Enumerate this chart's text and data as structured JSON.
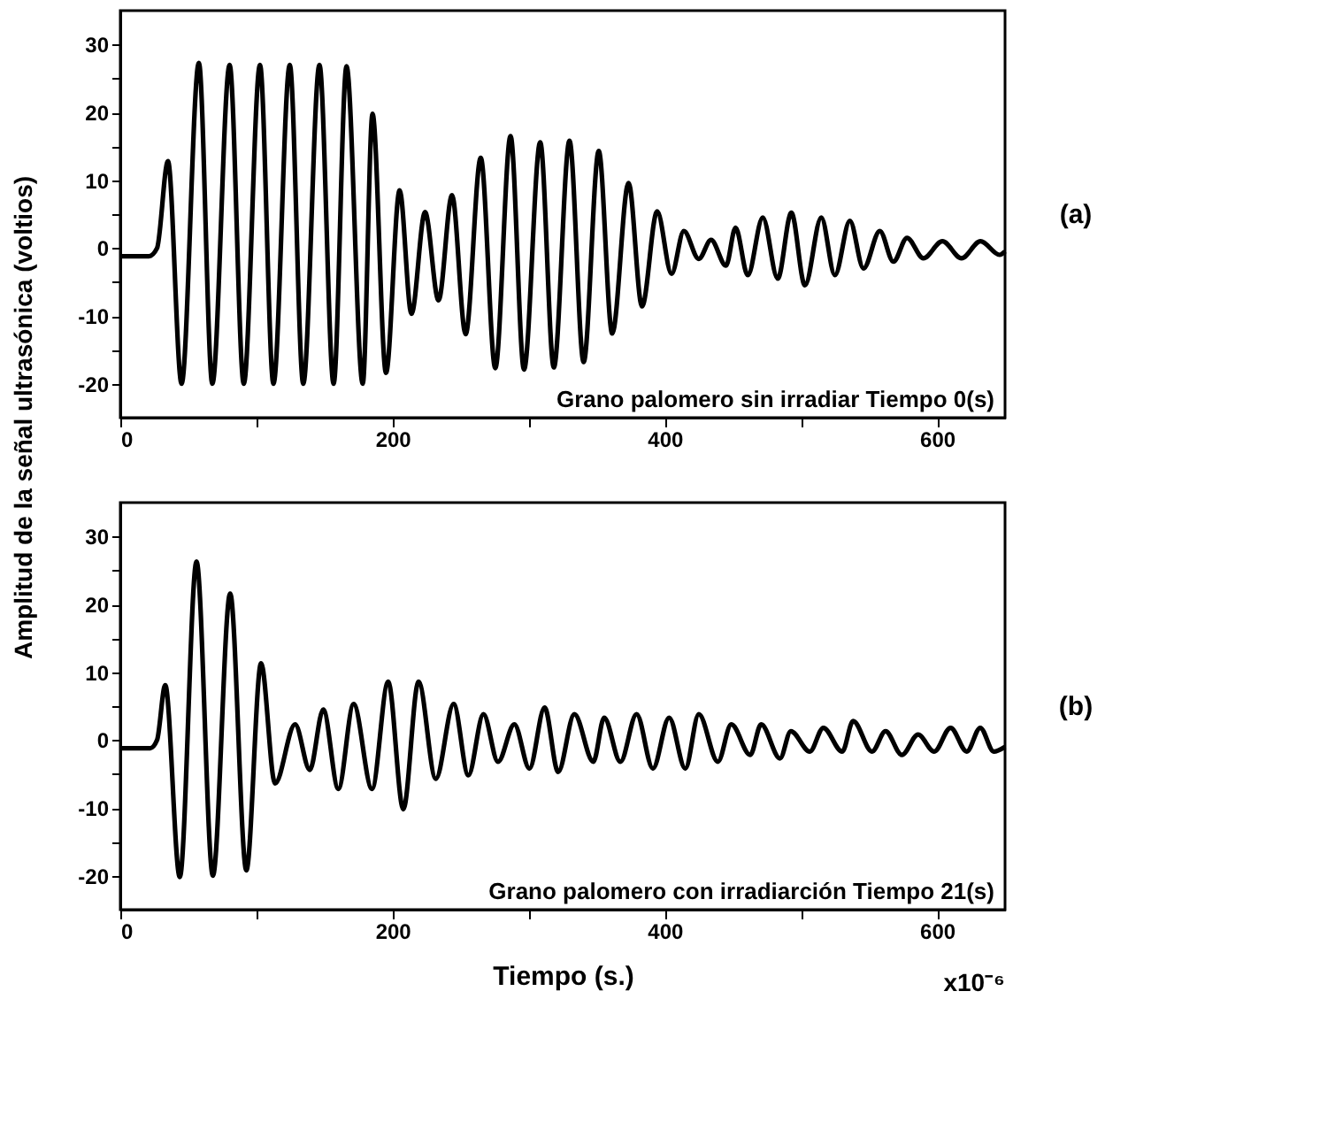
{
  "chart_data": [
    {
      "type": "line",
      "ylabel": "Amplitud de la señal ultrasónica (voltios)",
      "xlim": [
        0,
        650
      ],
      "ylim": [
        -25,
        35
      ],
      "xticks": [
        0,
        {
          "value": 100,
          "label": null
        },
        200,
        {
          "value": 300,
          "label": null
        },
        400,
        {
          "value": 500,
          "label": null
        },
        600
      ],
      "yticks": [
        -20,
        {
          "value": -15,
          "label": null
        },
        -10,
        {
          "value": -5,
          "label": null
        },
        0,
        {
          "value": 5,
          "label": null
        },
        10,
        {
          "value": 15,
          "label": null
        },
        20,
        {
          "value": 25,
          "label": null
        },
        30
      ],
      "annotations": [
        "Grano palomero sin irradiar Tiempo 0(s)",
        "(a)"
      ],
      "series": [
        {
          "color": "#000000",
          "x": [
            0,
            21,
            27,
            35,
            45,
            57.7,
            67.6,
            80.3,
            90.7,
            102.6,
            112.5,
            124.5,
            134.4,
            146.3,
            156.7,
            166.2,
            178.1,
            185.3,
            195.2,
            205.2,
            213.9,
            223.9,
            233.8,
            243.7,
            253.7,
            264.8,
            275.5,
            286.7,
            296.6,
            308.5,
            318.5,
            330,
            340.4,
            351.5,
            361.4,
            373.4,
            383.3,
            394.4,
            405,
            414,
            425,
            434,
            445,
            452,
            461,
            472,
            483,
            493,
            503,
            515,
            525,
            536,
            546,
            558,
            568,
            578,
            590,
            604,
            618,
            632,
            646,
            650
          ],
          "values": [
            -1.2,
            -1.2,
            0,
            12.8,
            -20,
            27.3,
            -20,
            27,
            -20,
            27,
            -20,
            27,
            -20,
            27,
            -20,
            26.8,
            -20,
            19.8,
            -18.4,
            8.5,
            -9.7,
            5.3,
            -7.7,
            7.8,
            -12.7,
            13.3,
            -17.7,
            16.5,
            -17.9,
            15.6,
            -17.6,
            15.8,
            -16.8,
            14.3,
            -12.6,
            9.6,
            -8.6,
            5.4,
            -3.8,
            2.5,
            -1.6,
            1.2,
            -2.6,
            3,
            -4,
            4.5,
            -4.5,
            5.2,
            -5.5,
            4.5,
            -4,
            4,
            -3,
            2.5,
            -2,
            1.5,
            -1.5,
            1,
            -1.5,
            1,
            -1,
            -0.5
          ]
        }
      ]
    },
    {
      "type": "line",
      "xlabel": "Tiempo (s.)",
      "xlim": [
        0,
        650
      ],
      "ylim": [
        -25,
        35
      ],
      "xticks": [
        0,
        {
          "value": 100,
          "label": null
        },
        200,
        {
          "value": 300,
          "label": null
        },
        400,
        {
          "value": 500,
          "label": null
        },
        600
      ],
      "yticks": [
        -20,
        {
          "value": -15,
          "label": null
        },
        -10,
        {
          "value": -5,
          "label": null
        },
        0,
        {
          "value": 5,
          "label": null
        },
        10,
        {
          "value": 15,
          "label": null
        },
        20,
        {
          "value": 25,
          "label": null
        },
        30
      ],
      "annotations": [
        "Grano palomero con irradiarción  Tiempo 21(s)",
        "(b)",
        "x10⁻⁶"
      ],
      "series": [
        {
          "color": "#000000",
          "x": [
            0,
            22,
            27,
            33,
            43.7,
            56,
            68,
            80.7,
            92.6,
            103.4,
            113.7,
            128.4,
            139.2,
            149.1,
            160.2,
            171.4,
            184.9,
            196.8,
            207.9,
            219.1,
            231.8,
            244.9,
            255.7,
            266.8,
            277.5,
            289.5,
            300.6,
            311.7,
            321.7,
            333.6,
            347.5,
            355.5,
            367.4,
            379.3,
            391.3,
            403.2,
            415.1,
            425,
            439,
            448.9,
            462.8,
            470.8,
            484.7,
            492.6,
            506.6,
            516.5,
            530.4,
            538.4,
            552.3,
            562.2,
            574.2,
            586.1,
            598,
            610,
            621.9,
            631.8,
            641.7,
            650
          ],
          "values": [
            -1.2,
            -1.2,
            0,
            8.1,
            -20.2,
            26.3,
            -20,
            21.6,
            -19.2,
            11.3,
            -6.4,
            2.3,
            -4.4,
            4.5,
            -7.2,
            5.3,
            -7.2,
            8.6,
            -10.2,
            8.6,
            -5.7,
            5.3,
            -5.2,
            3.8,
            -3.2,
            2.3,
            -4.2,
            4.8,
            -4.7,
            3.8,
            -3.2,
            3.3,
            -3.2,
            3.8,
            -4.2,
            3.3,
            -4.2,
            3.8,
            -3.2,
            2.3,
            -2.2,
            2.3,
            -2.7,
            1.3,
            -1.7,
            1.8,
            -1.7,
            2.8,
            -1.7,
            1.3,
            -2.2,
            0.8,
            -1.7,
            1.8,
            -1.7,
            1.8,
            -1.7,
            -1
          ]
        }
      ]
    }
  ]
}
